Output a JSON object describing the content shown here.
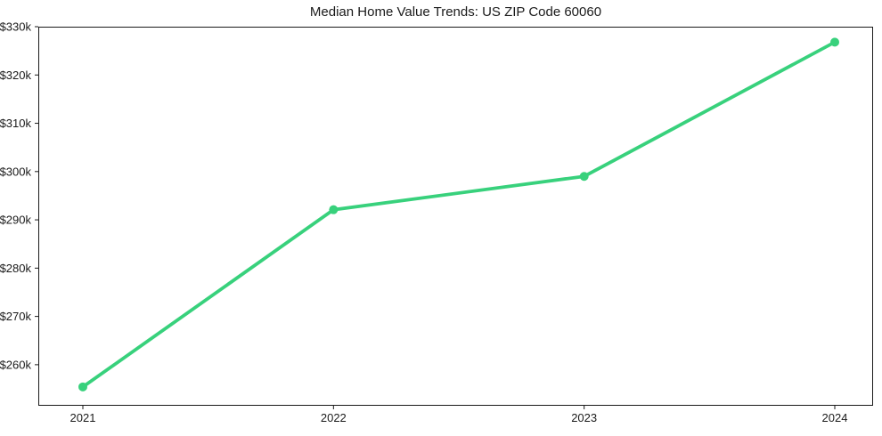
{
  "figure": {
    "background_color": "#ffffff",
    "axis_color": "#1a1a1a",
    "accent_green": "#38d17c"
  },
  "chart_data": {
    "type": "line",
    "title": "Median Home Value Trends: US ZIP Code 60060",
    "xlabel": "",
    "ylabel": "",
    "categories": [
      "2021",
      "2022",
      "2023",
      "2024"
    ],
    "series": [
      {
        "name": "Median Home Value",
        "color": "#38d17c",
        "values": [
          255400,
          292100,
          299000,
          326800
        ]
      }
    ],
    "y_ticks": [
      {
        "value": 260000,
        "label": "$260k"
      },
      {
        "value": 270000,
        "label": "$270k"
      },
      {
        "value": 280000,
        "label": "$280k"
      },
      {
        "value": 290000,
        "label": "$290k"
      },
      {
        "value": 300000,
        "label": "$300k"
      },
      {
        "value": 310000,
        "label": "$310k"
      },
      {
        "value": 320000,
        "label": "$320k"
      },
      {
        "value": 330000,
        "label": "$330k"
      }
    ],
    "ylim": [
      251500,
      330000
    ],
    "grid": false,
    "legend": false,
    "marker": "circle"
  }
}
